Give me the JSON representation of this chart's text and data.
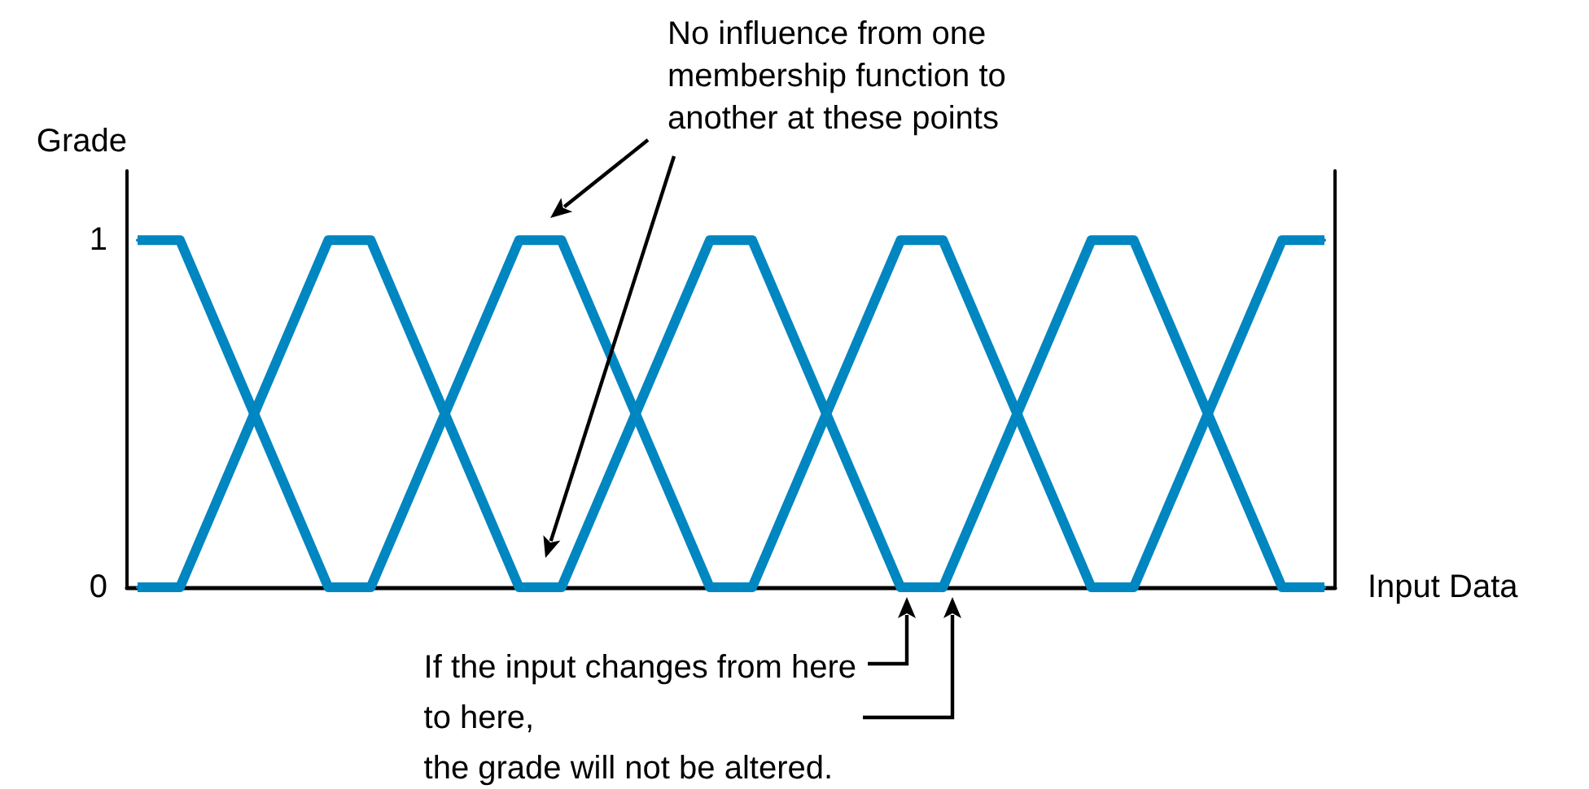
{
  "chart_data": {
    "type": "line",
    "xlabel": "Input Data",
    "ylabel": "Grade",
    "categories": [
      null,
      null,
      null,
      null,
      null,
      null,
      null,
      null,
      null,
      null,
      null,
      null,
      null,
      null,
      null,
      null,
      null,
      null,
      null,
      null,
      null,
      null,
      null,
      null,
      null,
      null,
      null,
      null,
      null,
      null,
      null,
      null,
      null,
      null,
      null,
      null,
      null,
      null,
      null,
      null,
      null,
      null,
      null,
      null,
      null,
      null,
      null,
      null,
      null,
      null,
      null,
      null,
      null,
      null,
      null,
      null,
      null
    ],
    "series": [
      {
        "color": "#0086c0",
        "values": [
          1,
          null,
          1,
          null,
          null,
          null,
          null,
          null,
          null,
          0,
          null,
          0,
          null,
          null,
          null,
          null,
          null,
          null,
          1,
          null,
          1,
          null,
          null,
          null,
          null,
          null,
          null,
          0,
          null,
          0,
          null,
          null,
          null,
          null,
          null,
          null,
          1,
          null,
          1,
          null,
          null,
          null,
          null,
          null,
          null,
          0,
          null,
          0,
          null,
          null,
          null,
          null,
          null,
          null,
          1,
          null,
          1
        ]
      },
      {
        "color": "#0086c0",
        "values": [
          0,
          null,
          0,
          null,
          null,
          null,
          null,
          null,
          null,
          1,
          null,
          1,
          null,
          null,
          null,
          null,
          null,
          null,
          0,
          null,
          0,
          null,
          null,
          null,
          null,
          null,
          null,
          1,
          null,
          1,
          null,
          null,
          null,
          null,
          null,
          null,
          0,
          null,
          0,
          null,
          null,
          null,
          null,
          null,
          null,
          1,
          null,
          1,
          null,
          null,
          null,
          null,
          null,
          null,
          0,
          null,
          0
        ]
      }
    ],
    "ylim": [
      0,
      1.2
    ],
    "yticks": [
      0,
      1
    ],
    "grid": false,
    "marker": "none",
    "line_style": "solid",
    "annotations": [
      "No influence from one\nmembership function to\nanother at these points",
      "If the input changes from here\nto here,\nthe grade will not be altered."
    ]
  }
}
